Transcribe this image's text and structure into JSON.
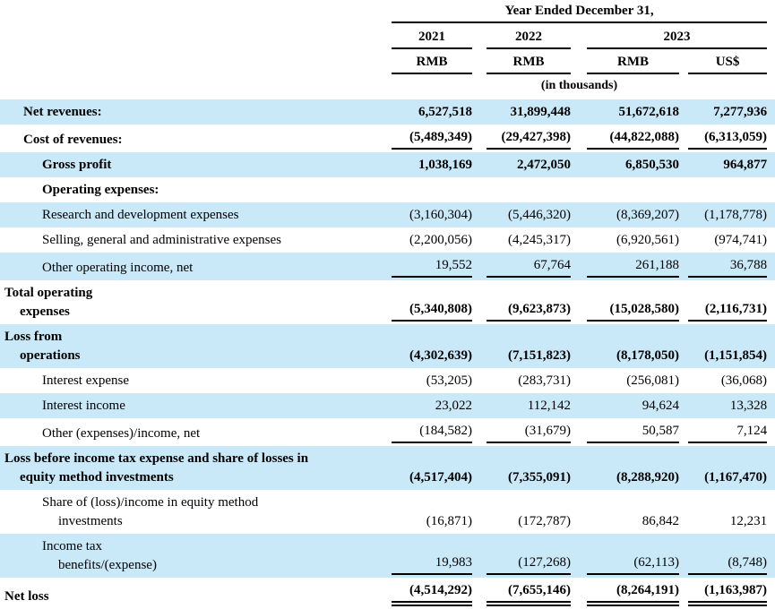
{
  "colors": {
    "row_highlight": "#c9e8f8",
    "rule": "#000000",
    "text": "#000000"
  },
  "table": {
    "header": {
      "period_label": "Year Ended December 31,",
      "years": [
        "2021",
        "2022",
        "2023"
      ],
      "currencies": [
        "RMB",
        "RMB",
        "RMB",
        "US$"
      ],
      "unit_note": "(in thousands)"
    },
    "rows": [
      {
        "lines": [
          {
            "text": "Net revenues:",
            "indent": 2
          }
        ],
        "bold": true,
        "bg": "blue",
        "rule": "none",
        "values": [
          "6,527,518",
          "31,899,448",
          "51,672,618",
          "7,277,936"
        ]
      },
      {
        "lines": [
          {
            "text": "Cost of revenues:",
            "indent": 2
          }
        ],
        "bold": true,
        "bg": "white",
        "rule": "single",
        "values": [
          "(5,489,349)",
          "(29,427,398)",
          "(44,822,088)",
          "(6,313,059)"
        ]
      },
      {
        "lines": [
          {
            "text": "Gross profit",
            "indent": 3
          }
        ],
        "bold": true,
        "bg": "blue",
        "rule": "none",
        "values": [
          "1,038,169",
          "2,472,050",
          "6,850,530",
          "964,877"
        ]
      },
      {
        "lines": [
          {
            "text": "Operating expenses:",
            "indent": 3
          }
        ],
        "bold": true,
        "bg": "white",
        "rule": "none",
        "values": [
          "",
          "",
          "",
          ""
        ]
      },
      {
        "lines": [
          {
            "text": "Research and development expenses",
            "indent": 3
          }
        ],
        "bold": false,
        "bg": "blue",
        "rule": "none",
        "values": [
          "(3,160,304)",
          "(5,446,320)",
          "(8,369,207)",
          "(1,178,778)"
        ]
      },
      {
        "lines": [
          {
            "text": "Selling, general and administrative expenses",
            "indent": 3
          }
        ],
        "bold": false,
        "bg": "white",
        "rule": "none",
        "values": [
          "(2,200,056)",
          "(4,245,317)",
          "(6,920,561)",
          "(974,741)"
        ]
      },
      {
        "lines": [
          {
            "text": "Other operating income, net",
            "indent": 3
          }
        ],
        "bold": false,
        "bg": "blue",
        "rule": "single",
        "values": [
          "19,552",
          "67,764",
          "261,188",
          "36,788"
        ]
      },
      {
        "lines": [
          {
            "text": "Total operating",
            "indent": 0
          },
          {
            "text": "expenses",
            "indent": 1
          }
        ],
        "bold": true,
        "bg": "white",
        "rule": "single",
        "values": [
          "(5,340,808)",
          "(9,623,873)",
          "(15,028,580)",
          "(2,116,731)"
        ]
      },
      {
        "lines": [
          {
            "text": "Loss from",
            "indent": 0
          },
          {
            "text": "operations",
            "indent": 1
          }
        ],
        "bold": true,
        "bg": "blue",
        "rule": "none",
        "values": [
          "(4,302,639)",
          "(7,151,823)",
          "(8,178,050)",
          "(1,151,854)"
        ]
      },
      {
        "lines": [
          {
            "text": "Interest expense",
            "indent": 3
          }
        ],
        "bold": false,
        "bg": "white",
        "rule": "none",
        "values": [
          "(53,205)",
          "(283,731)",
          "(256,081)",
          "(36,068)"
        ]
      },
      {
        "lines": [
          {
            "text": "Interest income",
            "indent": 3
          }
        ],
        "bold": false,
        "bg": "blue",
        "rule": "none",
        "values": [
          "23,022",
          "112,142",
          "94,624",
          "13,328"
        ]
      },
      {
        "lines": [
          {
            "text": "Other (expenses)/income, net",
            "indent": 3
          }
        ],
        "bold": false,
        "bg": "white",
        "rule": "single",
        "values": [
          "(184,582)",
          "(31,679)",
          "50,587",
          "7,124"
        ]
      },
      {
        "lines": [
          {
            "text": "Loss before income tax expense and share of losses in",
            "indent": 0
          },
          {
            "text": "equity method investments",
            "indent": 1
          }
        ],
        "bold": true,
        "bg": "blue",
        "rule": "none",
        "values": [
          "(4,517,404)",
          "(7,355,091)",
          "(8,288,920)",
          "(1,167,470)"
        ]
      },
      {
        "lines": [
          {
            "text": "Share of (loss)/income in equity method",
            "indent": 3
          },
          {
            "text": "investments",
            "indent": 4
          }
        ],
        "bold": false,
        "bg": "white",
        "rule": "none",
        "values": [
          "(16,871)",
          "(172,787)",
          "86,842",
          "12,231"
        ]
      },
      {
        "lines": [
          {
            "text": "Income tax",
            "indent": 3
          },
          {
            "text": "benefits/(expense)",
            "indent": 4
          }
        ],
        "bold": false,
        "bg": "blue",
        "rule": "single",
        "values": [
          "19,983",
          "(127,268)",
          "(62,113)",
          "(8,748)"
        ]
      },
      {
        "lines": [
          {
            "text": "Net loss",
            "indent": 0
          }
        ],
        "bold": true,
        "bg": "white",
        "rule": "double",
        "values": [
          "(4,514,292)",
          "(7,655,146)",
          "(8,264,191)",
          "(1,163,987)"
        ]
      }
    ]
  }
}
